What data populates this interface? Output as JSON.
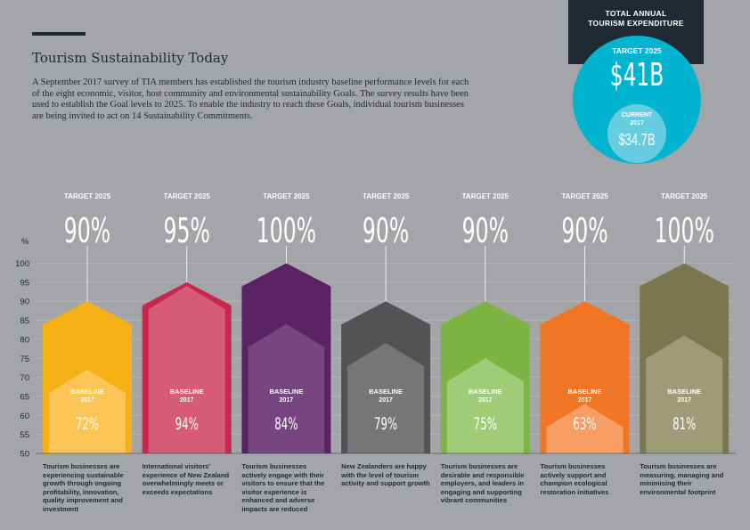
{
  "header": {
    "title": "Tourism Sustainability Today",
    "intro": "A September 2017 survey of TIA members has established the tourism industry baseline performance levels for each of the eight economic, visitor, host community and environmental sustainability Goals. The survey results have been used to establish the Goal levels to 2025. To enable the industry to reach these Goals, individual tourism businesses are being invited to act on 14 Sustainability Commitments."
  },
  "expenditure": {
    "title_line1": "TOTAL ANNUAL",
    "title_line2": "TOURISM EXPENDITURE",
    "target_label": "TARGET 2025",
    "target_value": "$41B",
    "current_label": "CURRENT",
    "current_year": "2017",
    "current_value": "$34.7B"
  },
  "colors": {
    "background": "#a4a5a8",
    "dark": "#1f2a33",
    "cyan": "#00b4d0",
    "cyan_light": "#66cde0"
  },
  "chart_data": {
    "type": "bar",
    "ylabel": "%",
    "ylim": [
      50,
      100
    ],
    "yticks": [
      50,
      55,
      60,
      65,
      70,
      75,
      80,
      85,
      90,
      95,
      100
    ],
    "target_label": "TARGET 2025",
    "baseline_label": "BASELINE",
    "baseline_year": "2017",
    "series": [
      {
        "name": "TARGET 2025",
        "values": [
          90,
          95,
          100,
          90,
          90,
          90,
          100
        ]
      },
      {
        "name": "BASELINE 2017",
        "values": [
          72,
          94,
          84,
          79,
          75,
          63,
          81
        ]
      }
    ],
    "items": [
      {
        "target": 90,
        "target_text": "90%",
        "baseline": 72,
        "baseline_text": "72%",
        "color": "#f5b016",
        "light": "#fdc75c",
        "description": "Tourism businesses are experiencing sustainable growth through ongoing profitability, innovation, quality improvement and investment"
      },
      {
        "target": 95,
        "target_text": "95%",
        "baseline": 94,
        "baseline_text": "94%",
        "color": "#c8284f",
        "light": "#d76077",
        "description": "International visitors' experience of New Zealand overwhelmingly meets or exceeds expectations"
      },
      {
        "target": 100,
        "target_text": "100%",
        "baseline": 84,
        "baseline_text": "84%",
        "color": "#5b2264",
        "light": "#7a4a82",
        "description": "Tourism businesses actively engage with their visitors to ensure that the visitor experience is enhanced and adverse impacts are reduced"
      },
      {
        "target": 90,
        "target_text": "90%",
        "baseline": 79,
        "baseline_text": "79%",
        "color": "#535355",
        "light": "#7a7a7d",
        "description": "New Zealanders are happy with the level of tourism activity and support growth"
      },
      {
        "target": 90,
        "target_text": "90%",
        "baseline": 75,
        "baseline_text": "75%",
        "color": "#7cb342",
        "light": "#a3ce7c",
        "description": "Tourism businesses are desirable and responsible employers, and leaders in engaging and supporting vibrant communities"
      },
      {
        "target": 90,
        "target_text": "90%",
        "baseline": 63,
        "baseline_text": "63%",
        "color": "#f07525",
        "light": "#f6a268",
        "description": "Tourism businesses actively support and champion ecological restoration initiatives"
      },
      {
        "target": 100,
        "target_text": "100%",
        "baseline": 81,
        "baseline_text": "81%",
        "color": "#7b7650",
        "light": "#a29d7c",
        "description": "Tourism businesses are measuring, managing and minimising their environmental footprint"
      }
    ]
  }
}
